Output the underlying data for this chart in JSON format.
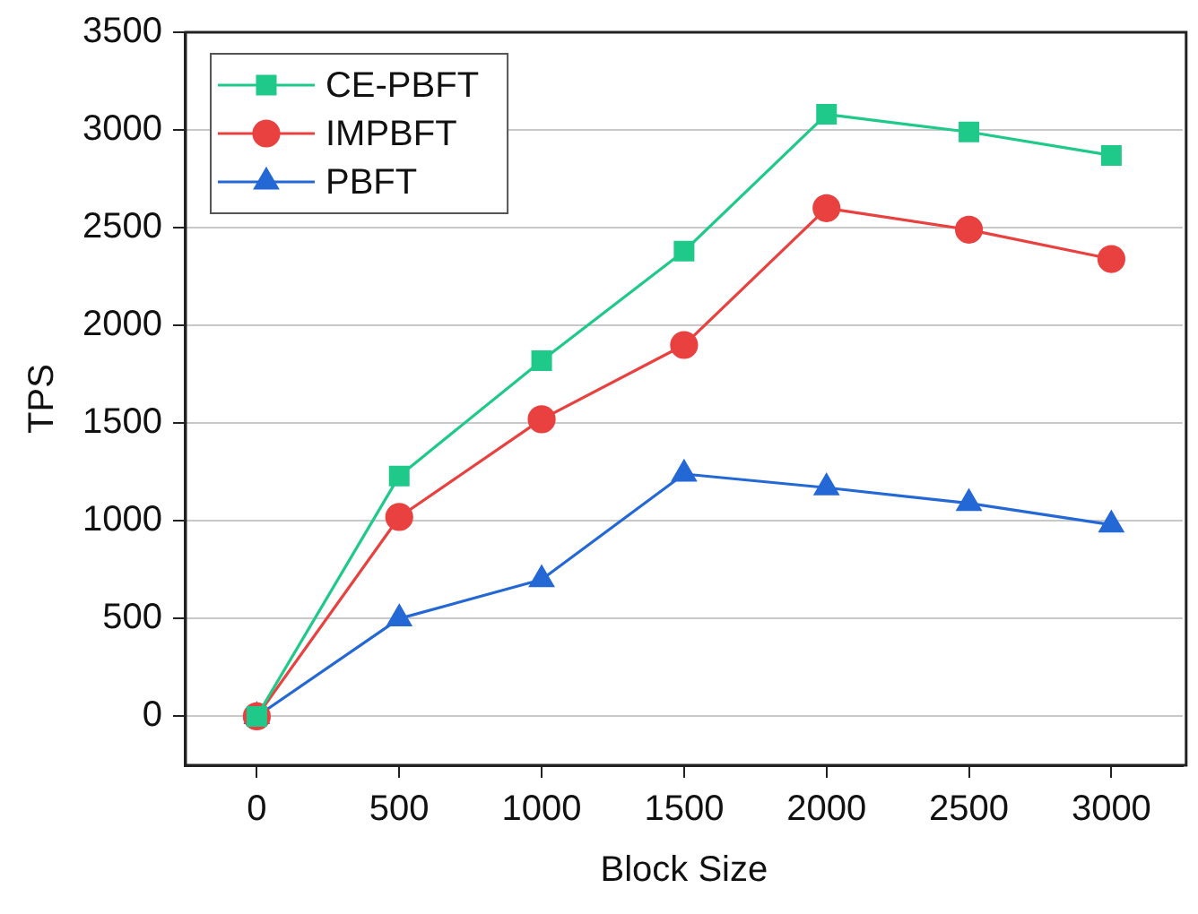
{
  "chart_data": {
    "type": "line",
    "xlabel": "Block Size",
    "ylabel": "TPS",
    "x": [
      0,
      500,
      1000,
      1500,
      2000,
      2500,
      3000
    ],
    "series": [
      {
        "name": "CE-PBFT",
        "color": "#1fc98a",
        "marker": "square",
        "values": [
          0,
          1230,
          1820,
          2380,
          3080,
          2990,
          2870
        ]
      },
      {
        "name": "IMPBFT",
        "color": "#e8413f",
        "marker": "circle",
        "values": [
          0,
          1020,
          1520,
          1900,
          2600,
          2490,
          2340
        ]
      },
      {
        "name": "PBFT",
        "color": "#2468d6",
        "marker": "triangle",
        "values": [
          0,
          500,
          700,
          1240,
          1170,
          1090,
          980
        ]
      }
    ],
    "xlim": [
      -250,
      3250
    ],
    "xticks": [
      0,
      500,
      1000,
      1500,
      2000,
      2500,
      3000
    ],
    "ylim": [
      -250,
      3500
    ],
    "yticks": [
      0,
      500,
      1000,
      1500,
      2000,
      2500,
      3000,
      3500
    ],
    "grid": "y",
    "legend": "top left",
    "line_style": "solid"
  }
}
